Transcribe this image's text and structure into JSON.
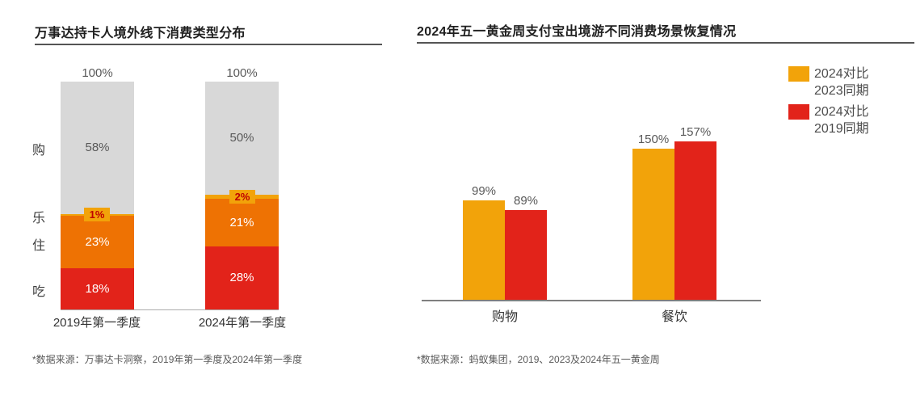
{
  "charts": [
    {
      "type": "stacked-bar",
      "title": "万事达持卡人境外线下消费类型分布",
      "footnote": "*数据来源：万事达卡洞察，2019年第一季度及2024年第一季度",
      "categories": [
        "2019年第一季度",
        "2024年第一季度"
      ],
      "total_labels": [
        "100%",
        "100%"
      ],
      "unit": "%",
      "axis_color": "#ababab",
      "series": [
        {
          "name": "购",
          "color": "#d8d8d8",
          "text_color": "#595959",
          "values": [
            58,
            50
          ]
        },
        {
          "name": "乐",
          "color": "#f2a30a",
          "badge_text_color": "#c00000",
          "values": [
            1,
            2
          ]
        },
        {
          "name": "住",
          "color": "#ee7203",
          "text_color": "#ffffff",
          "values": [
            23,
            21
          ]
        },
        {
          "name": "吃",
          "color": "#e2231a",
          "text_color": "#ffffff",
          "values": [
            18,
            28
          ]
        }
      ]
    },
    {
      "type": "bar",
      "title": "2024年五一黄金周支付宝出境游不同消费场景恢复情况",
      "footnote": "*数据来源：蚂蚁集团，2019、2023及2024年五一黄金周",
      "categories": [
        "购物",
        "餐饮"
      ],
      "unit": "%",
      "legend_position": "top-right",
      "axis_color": "#7f7f7f",
      "series": [
        {
          "name": "2024对比2023同期",
          "legend_lines": [
            "2024对比",
            "2023同期"
          ],
          "color": "#f2a30a",
          "values": [
            99,
            150
          ]
        },
        {
          "name": "2024对比2019同期",
          "legend_lines": [
            "2024对比",
            "2019同期"
          ],
          "color": "#e2231a",
          "values": [
            89,
            157
          ]
        }
      ]
    }
  ]
}
